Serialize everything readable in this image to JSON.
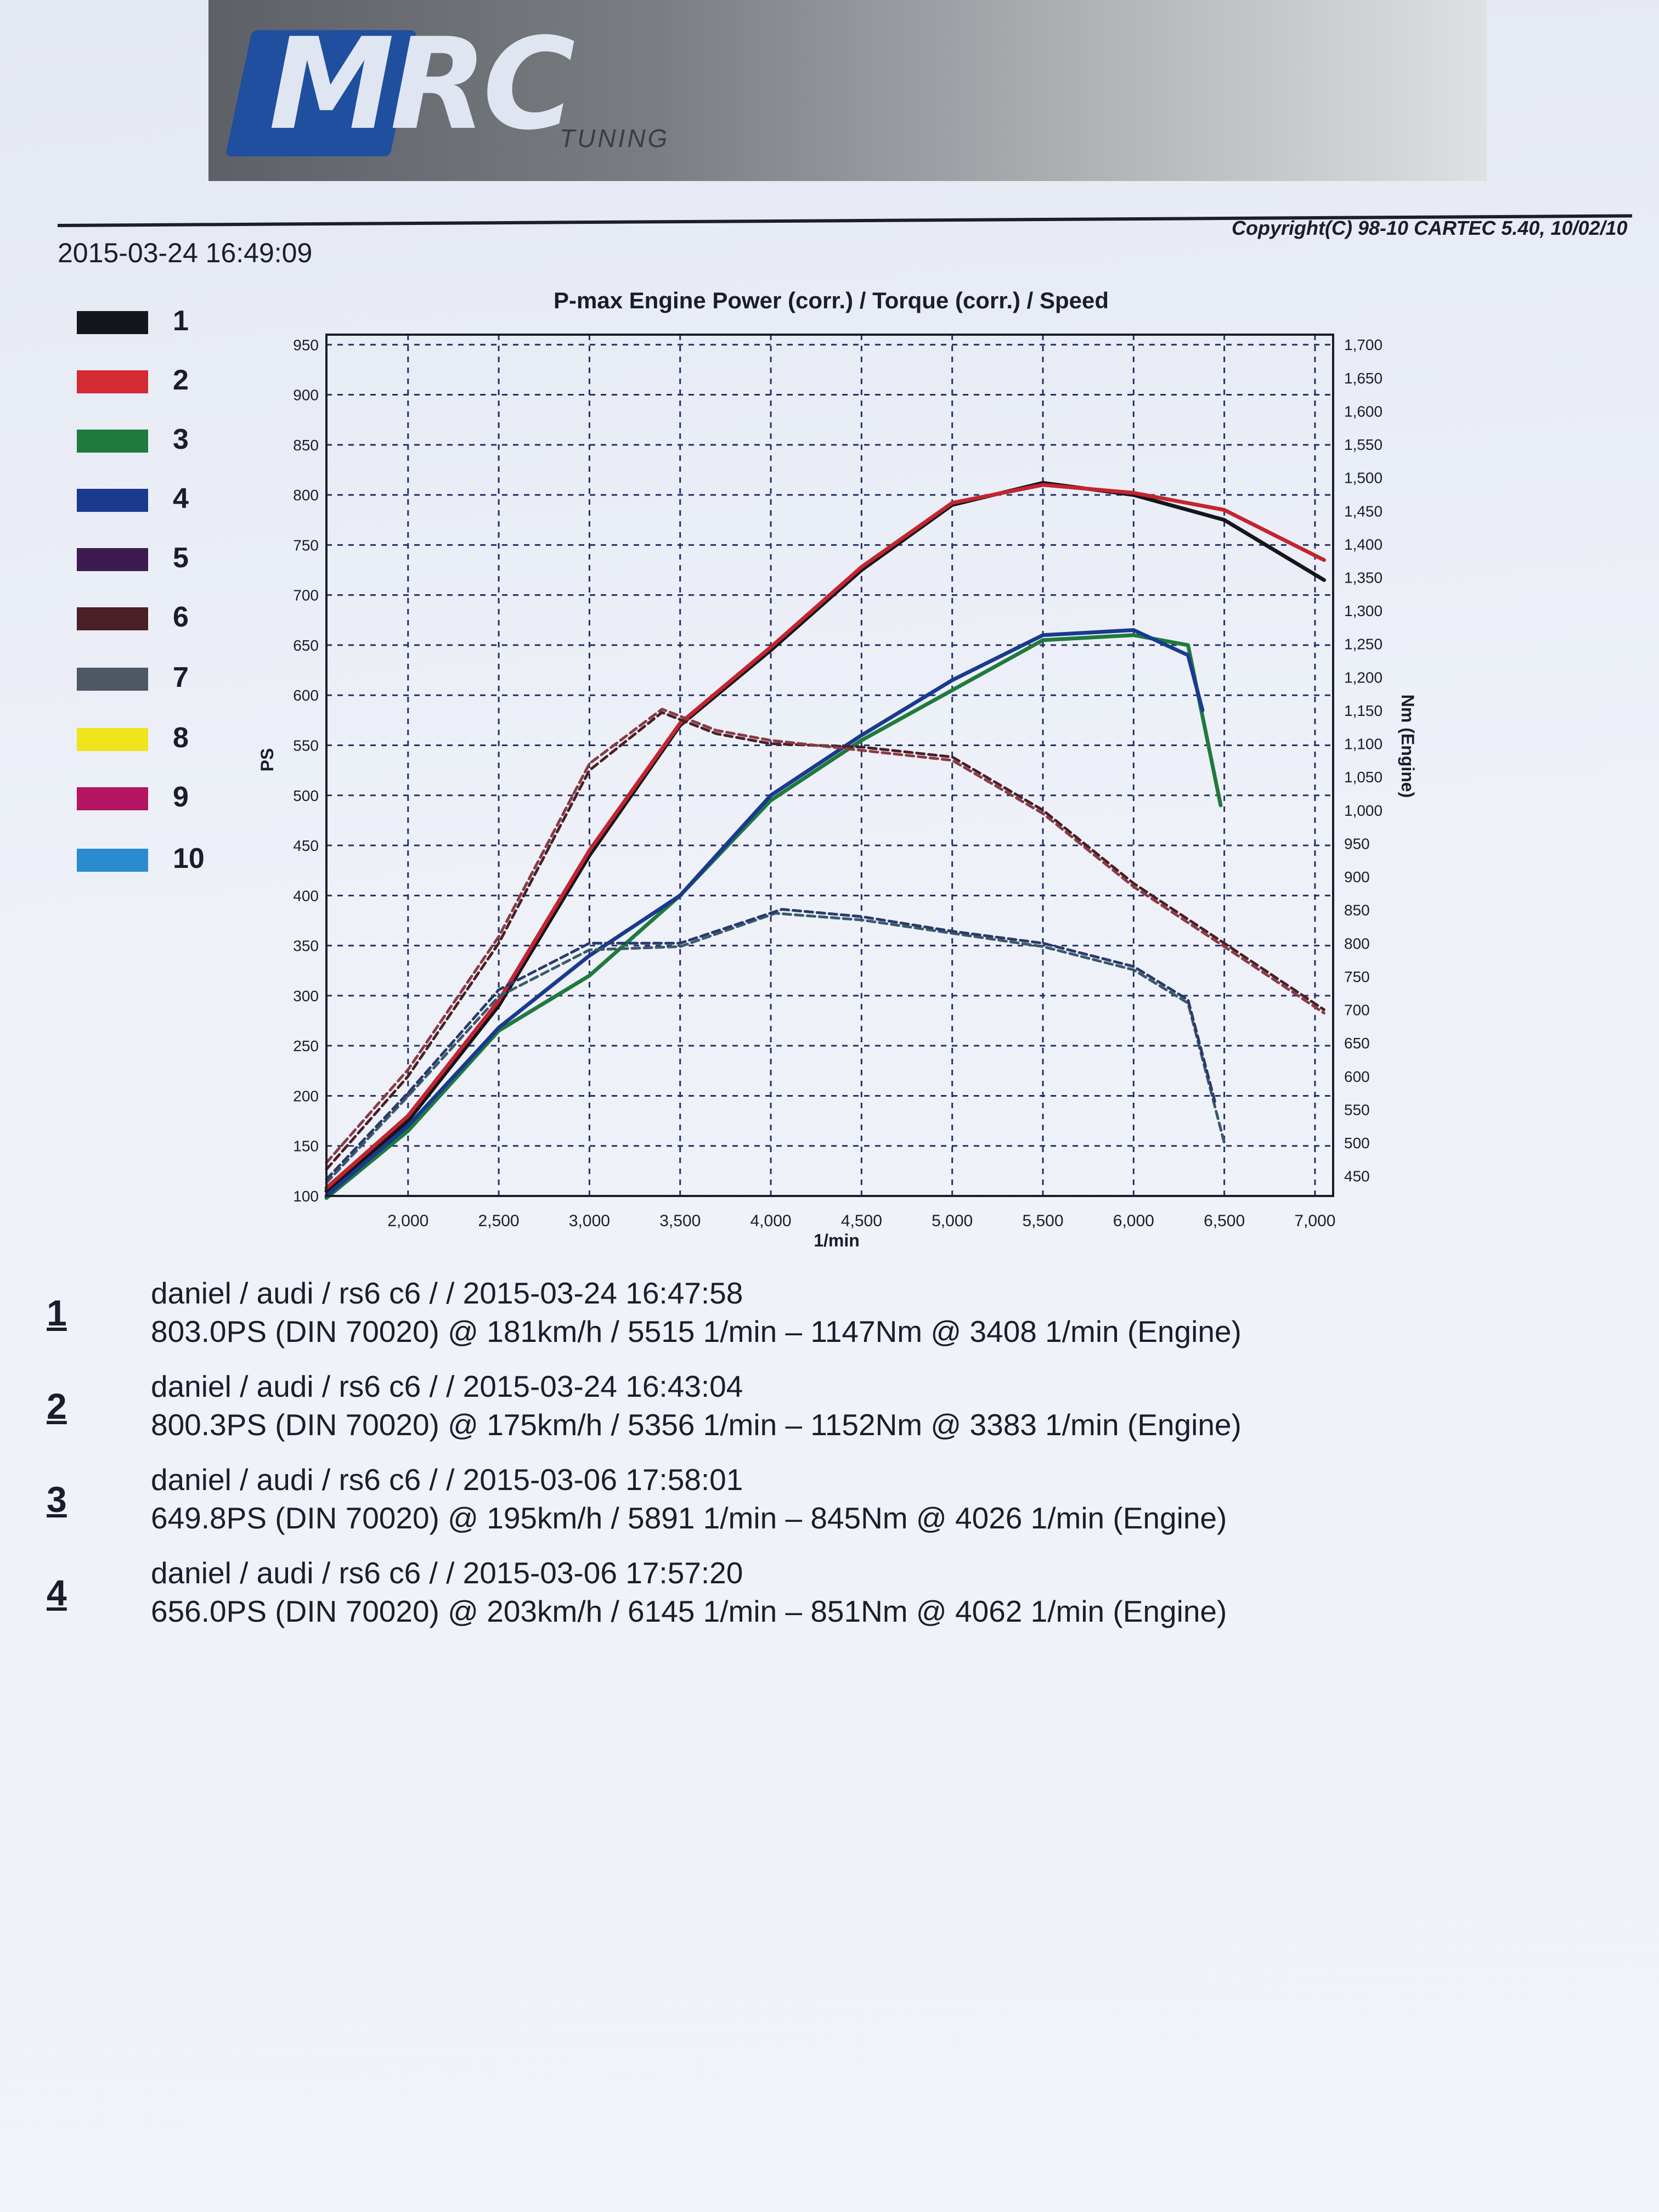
{
  "header": {
    "logo_text": "MRC",
    "logo_subtext": "TUNING",
    "timestamp": "2015-03-24 16:49:09",
    "copyright": "Copyright(C) 98-10 CARTEC 5.40, 10/02/10"
  },
  "legend": [
    {
      "label": "1",
      "color": "#15151c"
    },
    {
      "label": "2",
      "color": "#d42a34"
    },
    {
      "label": "3",
      "color": "#1f7a3e"
    },
    {
      "label": "4",
      "color": "#1a3a8f"
    },
    {
      "label": "5",
      "color": "#3d1a4f"
    },
    {
      "label": "6",
      "color": "#4a1f26"
    },
    {
      "label": "7",
      "color": "#4e5763"
    },
    {
      "label": "8",
      "color": "#f0e41c"
    },
    {
      "label": "9",
      "color": "#b31560"
    },
    {
      "label": "10",
      "color": "#2a8bd0"
    }
  ],
  "chart_data": {
    "type": "line",
    "title": "P-max Engine Power (corr.) / Torque (corr.) / Speed",
    "xlabel": "1/min",
    "ylabel": "PS",
    "y2label": "Nm (Engine)",
    "xlim": [
      1550,
      7100
    ],
    "ylim": [
      100,
      960
    ],
    "y2lim": [
      420,
      1715
    ],
    "x_ticks": [
      2000,
      2500,
      3000,
      3500,
      4000,
      4500,
      5000,
      5500,
      6000,
      6500,
      7000
    ],
    "x_tick_labels": [
      "2,000",
      "2,500",
      "3,000",
      "3,500",
      "4,000",
      "4,500",
      "5,000",
      "5,500",
      "6,000",
      "6,500",
      "7,000"
    ],
    "y_ticks": [
      100,
      150,
      200,
      250,
      300,
      350,
      400,
      450,
      500,
      550,
      600,
      650,
      700,
      750,
      800,
      850,
      900,
      950
    ],
    "y_tick_labels": [
      "100",
      "150",
      "200",
      "250",
      "300",
      "350",
      "400",
      "450",
      "500",
      "550",
      "600",
      "650",
      "700",
      "750",
      "800",
      "850",
      "900",
      "950"
    ],
    "y2_ticks": [
      450,
      500,
      550,
      600,
      650,
      700,
      750,
      800,
      850,
      900,
      950,
      1000,
      1050,
      1100,
      1150,
      1200,
      1250,
      1300,
      1350,
      1400,
      1450,
      1500,
      1550,
      1600,
      1650,
      1700
    ],
    "y2_tick_labels": [
      "450",
      "500",
      "550",
      "600",
      "650",
      "700",
      "750",
      "800",
      "850",
      "900",
      "950",
      "1,000",
      "1,050",
      "1,100",
      "1,150",
      "1,200",
      "1,250",
      "1,300",
      "1,350",
      "1,400",
      "1,450",
      "1,500",
      "1,550",
      "1,600",
      "1,650",
      "1,700"
    ],
    "grid": true,
    "series": [
      {
        "name": "1",
        "kind": "power",
        "axis": "left",
        "color": "#15151c",
        "x": [
          1550,
          2000,
          2500,
          3000,
          3500,
          4000,
          4500,
          5000,
          5500,
          6000,
          6500,
          7050
        ],
        "y": [
          105,
          175,
          290,
          440,
          570,
          645,
          725,
          790,
          812,
          800,
          775,
          715
        ]
      },
      {
        "name": "2",
        "kind": "power",
        "axis": "left",
        "color": "#c42430",
        "x": [
          1550,
          2000,
          2500,
          3000,
          3500,
          4000,
          4500,
          5000,
          5500,
          6000,
          6500,
          7050
        ],
        "y": [
          108,
          180,
          295,
          445,
          572,
          648,
          728,
          792,
          810,
          802,
          785,
          735
        ]
      },
      {
        "name": "3",
        "kind": "power",
        "axis": "left",
        "color": "#1f7a3e",
        "x": [
          1550,
          2000,
          2500,
          3000,
          3500,
          4000,
          4500,
          5000,
          5500,
          6000,
          6300,
          6480
        ],
        "y": [
          98,
          165,
          265,
          320,
          400,
          495,
          555,
          605,
          655,
          660,
          650,
          490
        ]
      },
      {
        "name": "4",
        "kind": "power",
        "axis": "left",
        "color": "#1a3a8f",
        "x": [
          1550,
          2000,
          2500,
          3000,
          3500,
          4000,
          4500,
          5000,
          5500,
          6000,
          6300,
          6380
        ],
        "y": [
          100,
          170,
          268,
          340,
          400,
          500,
          560,
          615,
          660,
          665,
          640,
          585
        ]
      },
      {
        "name": "1",
        "kind": "torque",
        "axis": "right",
        "color": "#4a1f26",
        "x": [
          1550,
          2000,
          2500,
          3000,
          3400,
          3700,
          4000,
          4500,
          5000,
          5500,
          6000,
          6500,
          7050
        ],
        "y": [
          460,
          600,
          800,
          1060,
          1147,
          1115,
          1100,
          1095,
          1080,
          1000,
          890,
          800,
          700
        ]
      },
      {
        "name": "2",
        "kind": "torque",
        "axis": "right",
        "color": "#8a3a46",
        "x": [
          1550,
          2000,
          2500,
          3000,
          3400,
          3700,
          4000,
          4500,
          5000,
          5500,
          6000,
          6500,
          7050
        ],
        "y": [
          470,
          610,
          810,
          1070,
          1152,
          1120,
          1105,
          1090,
          1075,
          995,
          885,
          795,
          695
        ]
      },
      {
        "name": "3",
        "kind": "torque",
        "axis": "right",
        "color": "#3a5a6a",
        "x": [
          1550,
          2000,
          2500,
          3000,
          3500,
          4026,
          4500,
          5000,
          5500,
          6000,
          6300,
          6500
        ],
        "y": [
          440,
          570,
          720,
          790,
          795,
          845,
          835,
          815,
          795,
          760,
          710,
          500
        ]
      },
      {
        "name": "4",
        "kind": "torque",
        "axis": "right",
        "color": "#2a3a6a",
        "x": [
          1550,
          2000,
          2500,
          3000,
          3500,
          4062,
          4500,
          5000,
          5500,
          6000,
          6300,
          6450
        ],
        "y": [
          445,
          575,
          730,
          800,
          800,
          851,
          840,
          818,
          800,
          765,
          715,
          560
        ]
      }
    ]
  },
  "runs": [
    {
      "number": "1",
      "line1": "daniel / audi / rs6 c6 /  / 2015-03-24 16:47:58",
      "line2": "803.0PS (DIN 70020) @ 181km/h / 5515 1/min – 1147Nm @ 3408 1/min (Engine)"
    },
    {
      "number": "2",
      "line1": "daniel / audi / rs6 c6 /  / 2015-03-24 16:43:04",
      "line2": "800.3PS (DIN 70020) @ 175km/h / 5356 1/min – 1152Nm @ 3383 1/min (Engine)"
    },
    {
      "number": "3",
      "line1": "daniel / audi / rs6 c6 /  / 2015-03-06 17:58:01",
      "line2": "649.8PS (DIN 70020) @ 195km/h / 5891 1/min – 845Nm @ 4026 1/min (Engine)"
    },
    {
      "number": "4",
      "line1": "daniel / audi / rs6 c6 /  / 2015-03-06 17:57:20",
      "line2": "656.0PS (DIN 70020) @ 203km/h / 6145 1/min – 851Nm @ 4062 1/min (Engine)"
    }
  ]
}
